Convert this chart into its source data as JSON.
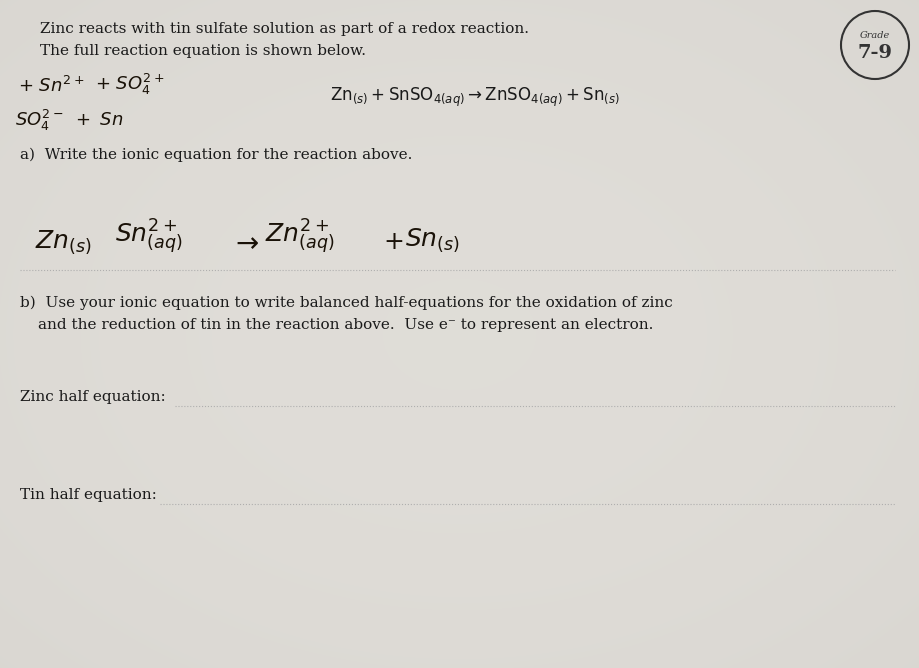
{
  "bg_color": "#d8d4cc",
  "paper_color": "#e8e5de",
  "text_color": "#1a1a1a",
  "dark_text": "#111111",
  "grade_label": "Grade",
  "grade_value": "7-9",
  "title_line1": "Zinc reacts with tin sulfate solution as part of a redox reaction.",
  "title_line2": "The full reaction equation is shown below.",
  "section_a": "a)  Write the ionic equation for the reaction above.",
  "section_b_line1": "b)  Use your ionic equation to write balanced half-equations for the oxidation of zinc",
  "section_b_line2": "and the reduction of tin in the reaction above.  Use e⁻ to represent an electron.",
  "zinc_label": "Zinc half equation:",
  "tin_label": "Tin half equation:",
  "line_color": "#aaaaaa",
  "handwrite_color": "#1a1208",
  "fig_w": 9.19,
  "fig_h": 6.68,
  "dpi": 100
}
